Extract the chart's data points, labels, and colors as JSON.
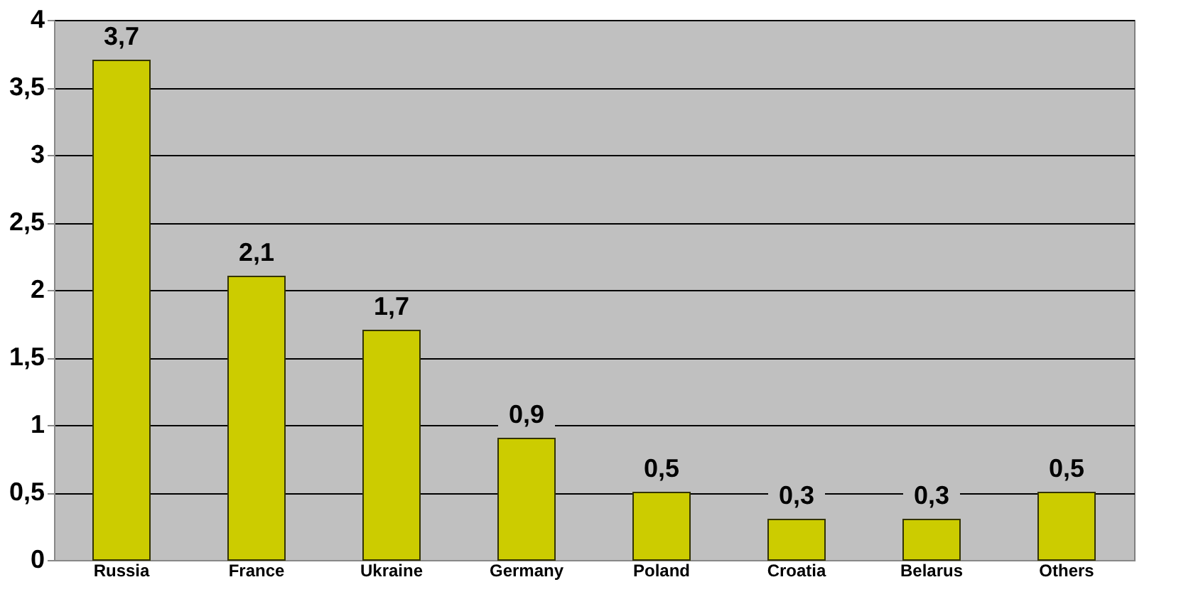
{
  "chart_data": {
    "type": "bar",
    "categories": [
      "Russia",
      "France",
      "Ukraine",
      "Germany",
      "Poland",
      "Croatia",
      "Belarus",
      "Others"
    ],
    "values": [
      3.7,
      2.1,
      1.7,
      0.9,
      0.5,
      0.3,
      0.3,
      0.5
    ],
    "value_labels": [
      "3,7",
      "2,1",
      "1,7",
      "0,9",
      "0,5",
      "0,3",
      "0,3",
      "0,5"
    ],
    "color": "#cccc00",
    "ylim": [
      0,
      4
    ],
    "yticks": [
      0,
      {
        "value": 0.5,
        "label": "0,5"
      },
      1,
      {
        "value": 1.5,
        "label": "1,5"
      },
      2,
      {
        "value": 2.5,
        "label": "2,5"
      },
      3,
      {
        "value": 3.5,
        "label": "3,5"
      },
      4
    ],
    "grid": "y"
  }
}
